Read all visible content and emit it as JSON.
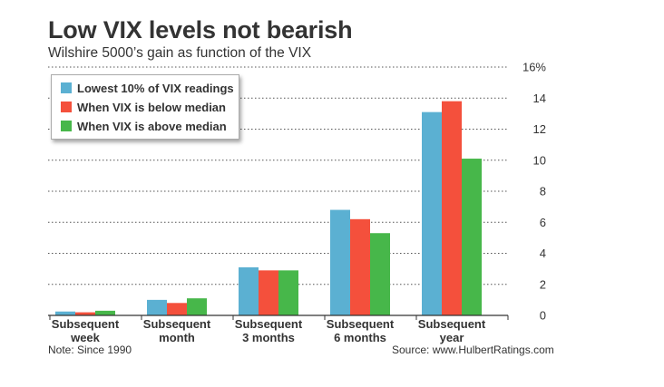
{
  "header": {
    "title": "Low VIX levels not bearish",
    "subtitle": "Wilshire 5000’s gain as function of the VIX"
  },
  "footer": {
    "note": "Note: Since 1990",
    "source": "Source: www.HulbertRatings.com"
  },
  "chart_data": {
    "type": "bar",
    "title": "Low VIX levels not bearish",
    "subtitle": "Wilshire 5000’s gain as function of the VIX",
    "categories": [
      [
        "Subsequent",
        "week"
      ],
      [
        "Subsequent",
        "month"
      ],
      [
        "Subsequent",
        "3 months"
      ],
      [
        "Subsequent",
        "6 months"
      ],
      [
        "Subsequent",
        "year"
      ]
    ],
    "series": [
      {
        "name": "Lowest 10% of VIX readings",
        "color": "#5bb0d2",
        "values": [
          0.25,
          1.0,
          3.1,
          6.8,
          13.1
        ]
      },
      {
        "name": "When VIX is below median",
        "color": "#f4503c",
        "values": [
          0.2,
          0.8,
          2.9,
          6.2,
          13.8
        ]
      },
      {
        "name": "When VIX is above median",
        "color": "#47b74a",
        "values": [
          0.3,
          1.1,
          2.9,
          5.3,
          10.1
        ]
      }
    ],
    "ylim": [
      0,
      16
    ],
    "yticks": [
      "0",
      "2",
      "4",
      "6",
      "8",
      "10",
      "12",
      "14",
      "16%"
    ],
    "grid": true,
    "legend_position": "top-left",
    "xlabel": "",
    "ylabel": ""
  }
}
